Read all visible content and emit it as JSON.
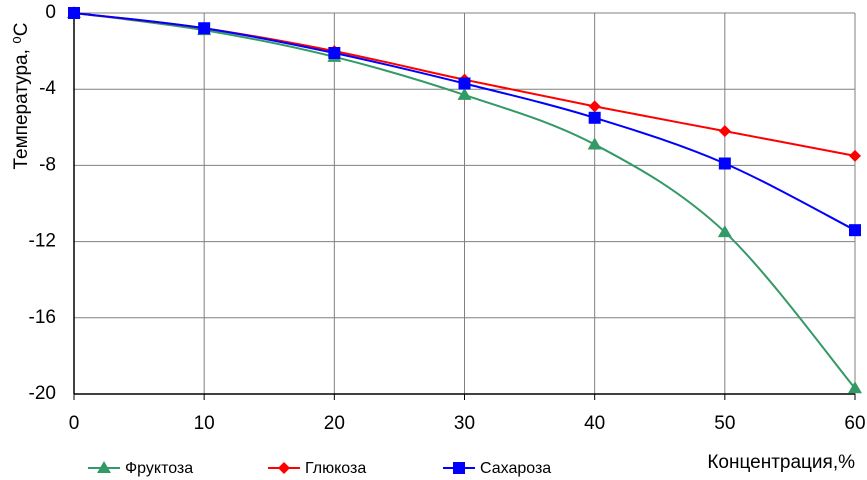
{
  "chart_data": {
    "type": "line",
    "y_label": "Температура, ⁰C",
    "x_label": "Концентрация,%",
    "x": [
      0,
      10,
      20,
      30,
      40,
      50,
      60
    ],
    "series": [
      {
        "name": "Фруктоза",
        "color": "#339966",
        "marker": "triangle",
        "values": [
          0,
          -0.9,
          -2.3,
          -4.3,
          -6.9,
          -11.5,
          -19.7
        ]
      },
      {
        "name": "Глюкоза",
        "color": "#ff0000",
        "marker": "diamond",
        "values": [
          0,
          -0.8,
          -2.0,
          -3.5,
          -4.9,
          -6.2,
          -7.5
        ]
      },
      {
        "name": "Сахароза",
        "color": "#0000ff",
        "marker": "square",
        "values": [
          0,
          -0.8,
          -2.1,
          -3.7,
          -5.5,
          -7.9,
          -11.4
        ]
      }
    ],
    "xlim": [
      0,
      60
    ],
    "xticks": [
      0,
      10,
      20,
      30,
      40,
      50,
      60
    ],
    "ylim": [
      -20,
      0
    ],
    "yticks": [
      0,
      -4,
      -8,
      -12,
      -16,
      -20
    ],
    "grid": true,
    "smooth": true,
    "legend": "bottom"
  }
}
